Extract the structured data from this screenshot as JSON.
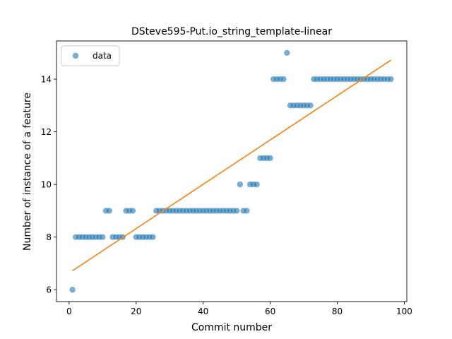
{
  "chart_data": {
    "type": "scatter",
    "title": "DSteve595-Put.io_string_template-linear",
    "xlabel": "Commit number",
    "ylabel": "Number of instance of a feature",
    "xlim": [
      -3.75,
      100.75
    ],
    "ylim": [
      5.55,
      15.45
    ],
    "xticks": [
      0,
      20,
      40,
      60,
      80,
      100
    ],
    "yticks": [
      6,
      8,
      10,
      12,
      14
    ],
    "legend_position": "top-left",
    "grid": false,
    "series": [
      {
        "name": "data",
        "kind": "scatter",
        "color": "#1f77b4",
        "x": [
          1,
          2,
          3,
          4,
          5,
          6,
          7,
          8,
          9,
          10,
          11,
          12,
          13,
          14,
          15,
          16,
          17,
          18,
          19,
          20,
          21,
          22,
          23,
          24,
          25,
          26,
          27,
          28,
          29,
          30,
          31,
          32,
          33,
          34,
          35,
          36,
          37,
          38,
          39,
          40,
          41,
          42,
          43,
          44,
          45,
          46,
          47,
          48,
          49,
          50,
          51,
          52,
          53,
          54,
          55,
          56,
          57,
          58,
          59,
          60,
          61,
          62,
          63,
          64,
          65,
          66,
          67,
          68,
          69,
          70,
          71,
          72,
          73,
          74,
          75,
          76,
          77,
          78,
          79,
          80,
          81,
          82,
          83,
          84,
          85,
          86,
          87,
          88,
          89,
          90,
          91,
          92,
          93,
          94,
          95,
          96
        ],
        "y": [
          6,
          8,
          8,
          8,
          8,
          8,
          8,
          8,
          8,
          8,
          9,
          9,
          8,
          8,
          8,
          8,
          9,
          9,
          9,
          8,
          8,
          8,
          8,
          8,
          8,
          9,
          9,
          9,
          9,
          9,
          9,
          9,
          9,
          9,
          9,
          9,
          9,
          9,
          9,
          9,
          9,
          9,
          9,
          9,
          9,
          9,
          9,
          9,
          9,
          9,
          10,
          9,
          9,
          10,
          10,
          10,
          11,
          11,
          11,
          11,
          14,
          14,
          14,
          14,
          15,
          13,
          13,
          13,
          13,
          13,
          13,
          13,
          14,
          14,
          14,
          14,
          14,
          14,
          14,
          14,
          14,
          14,
          14,
          14,
          14,
          14,
          14,
          14,
          14,
          14,
          14,
          14,
          14,
          14,
          14,
          14
        ]
      },
      {
        "name": "",
        "kind": "line",
        "color": "#ff7f0e",
        "x": [
          1,
          96
        ],
        "y": [
          6.72,
          14.72
        ]
      }
    ]
  }
}
